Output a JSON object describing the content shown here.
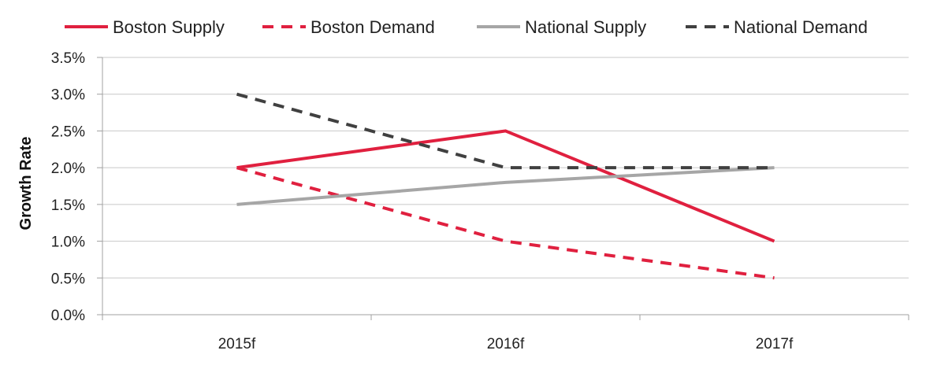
{
  "chart_data": {
    "type": "line",
    "title": "",
    "xlabel": "",
    "ylabel": "Growth Rate",
    "categories": [
      "2015f",
      "2016f",
      "2017f"
    ],
    "y_ticks": [
      "0.0%",
      "0.5%",
      "1.0%",
      "1.5%",
      "2.0%",
      "2.5%",
      "3.0%",
      "3.5%"
    ],
    "ylim": [
      0,
      3.5
    ],
    "grid": true,
    "legend_position": "top",
    "series": [
      {
        "name": "Boston Supply",
        "values": [
          2.0,
          2.5,
          1.0
        ],
        "color": "#e0203f",
        "style": "solid"
      },
      {
        "name": "Boston Demand",
        "values": [
          2.0,
          1.0,
          0.5
        ],
        "color": "#e0203f",
        "style": "dashed"
      },
      {
        "name": "National Supply",
        "values": [
          1.5,
          1.8,
          2.0
        ],
        "color": "#a6a6a6",
        "style": "solid"
      },
      {
        "name": "National Demand",
        "values": [
          3.0,
          2.0,
          2.0
        ],
        "color": "#404040",
        "style": "dashed"
      }
    ]
  }
}
